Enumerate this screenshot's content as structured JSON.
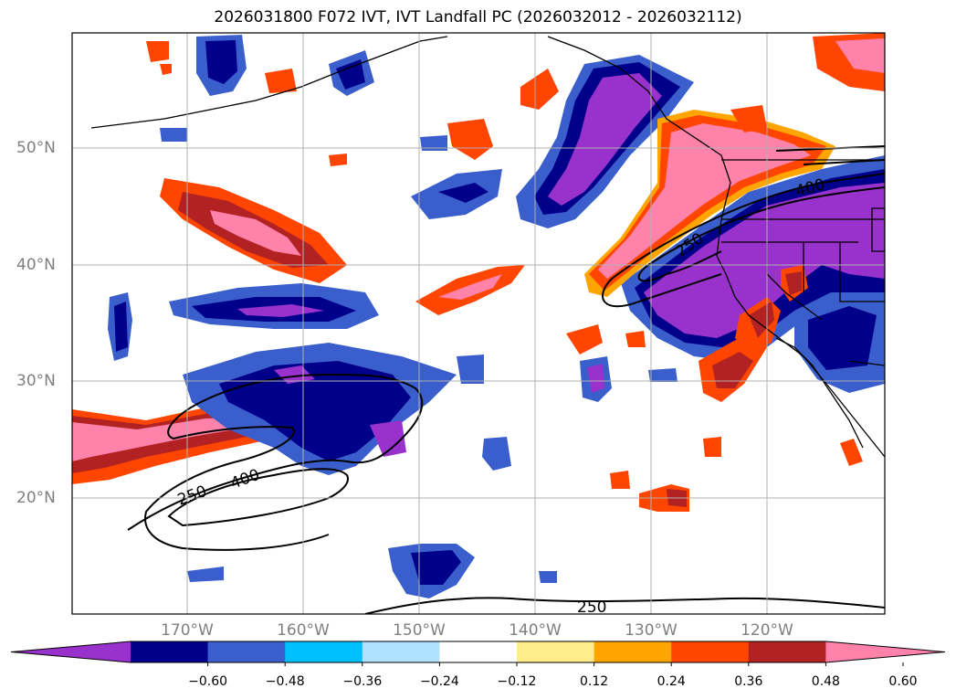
{
  "title": "2026031800 F072 IVT, IVT Landfall PC (2026032012 - 2026032112)",
  "lat_labels": [
    "50°N",
    "40°N",
    "30°N",
    "20°N"
  ],
  "lon_labels": [
    "170°W",
    "160°W",
    "150°W",
    "140°W",
    "130°W",
    "120°W"
  ],
  "contour_labels": [
    "250",
    "250",
    "400",
    "250",
    "400"
  ],
  "colorbar": {
    "ticks": [
      "−0.60",
      "−0.48",
      "−0.36",
      "−0.24",
      "−0.12",
      "0.12",
      "0.24",
      "0.36",
      "0.48",
      "0.60"
    ],
    "colors": [
      "#9932cc",
      "#00008b",
      "#3a5fcd",
      "#00bfff",
      "#b0e2ff",
      "#ffffff",
      "#ffec8b",
      "#ffa500",
      "#ff4500",
      "#b22222",
      "#ff82ab"
    ]
  }
}
